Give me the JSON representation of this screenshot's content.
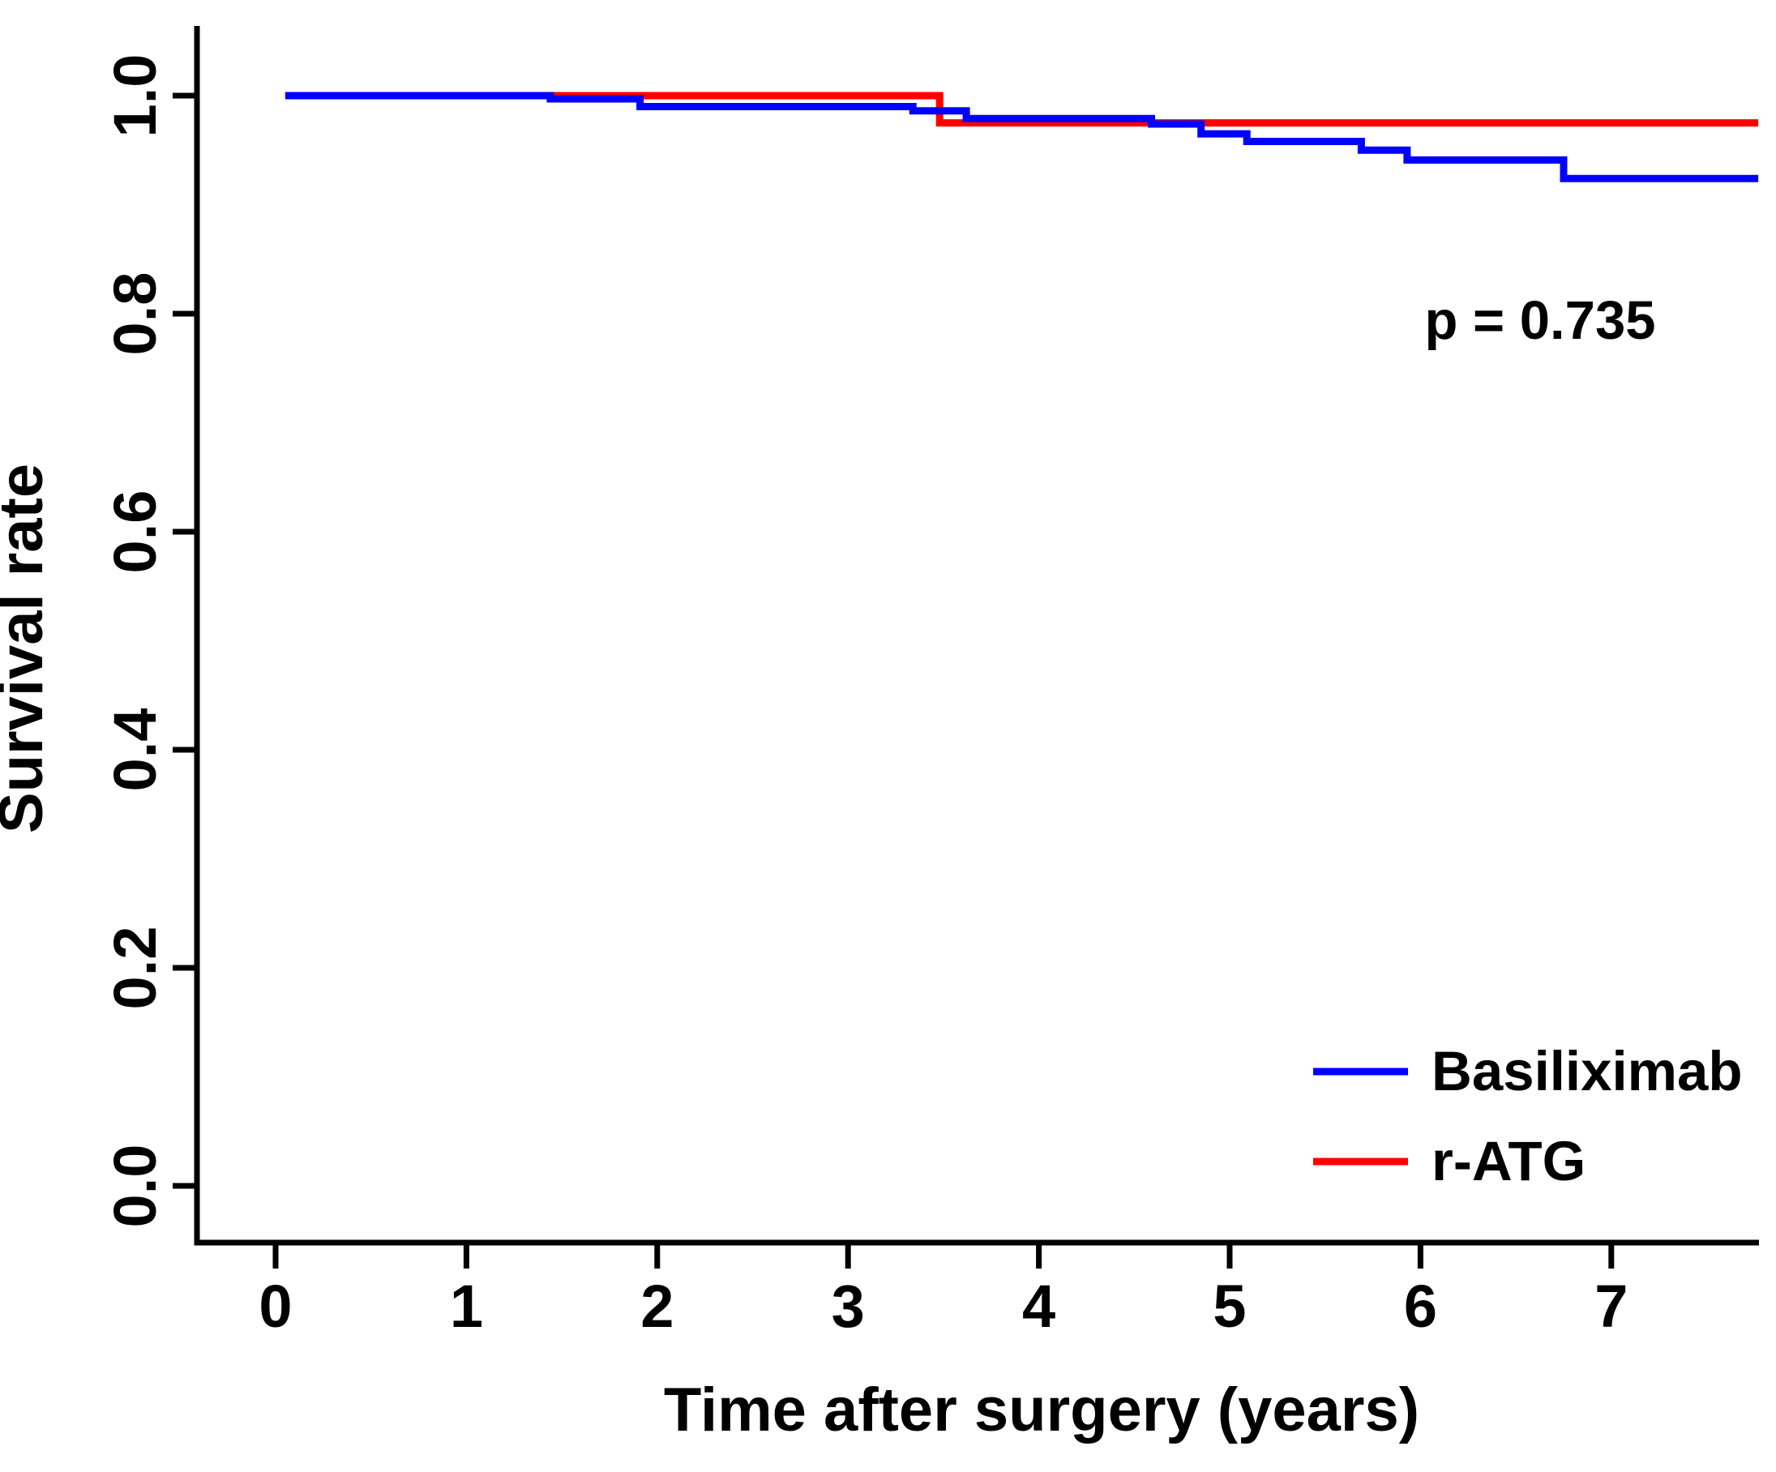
{
  "figure": {
    "background": "#ffffff",
    "axis_color": "#000000"
  },
  "chart_data": {
    "type": "line",
    "subtype": "kaplan-meier-step",
    "title": "",
    "xlabel": "Time after surgery (years)",
    "ylabel": "Survival rate",
    "xlim": [
      -0.41,
      7.78
    ],
    "ylim": [
      0.0,
      1.06
    ],
    "grid": false,
    "x_ticks": {
      "values": [
        0,
        1,
        2,
        3,
        4,
        5,
        6,
        7
      ],
      "labels": [
        "0",
        "1",
        "2",
        "3",
        "4",
        "5",
        "6",
        "7"
      ]
    },
    "y_ticks": {
      "values": [
        0.0,
        0.2,
        0.4,
        0.6,
        0.8,
        1.0
      ],
      "labels": [
        "0.0",
        "0.2",
        "0.4",
        "0.6",
        "0.8",
        "1.0"
      ]
    },
    "annotation": {
      "text": "p = 0.735",
      "x": 6.63,
      "y": 0.795
    },
    "series": [
      {
        "name": "r-ATG",
        "color": "#ff0000",
        "step": "post",
        "x": [
          1.44,
          3.48,
          7.77
        ],
        "y": [
          1.0,
          0.975,
          0.975
        ]
      },
      {
        "name": "Basiliximab",
        "color": "#0000ff",
        "step": "post",
        "x": [
          0.05,
          1.44,
          1.91,
          3.34,
          3.62,
          4.59,
          4.85,
          5.09,
          5.69,
          5.93,
          6.75,
          7.77
        ],
        "y": [
          1.0,
          0.997,
          0.99,
          0.986,
          0.979,
          0.974,
          0.965,
          0.958,
          0.95,
          0.941,
          0.924,
          0.924
        ]
      }
    ],
    "legend": {
      "position": "bottom-right",
      "entries": [
        {
          "label": "Basiliximab",
          "color": "#0000ff"
        },
        {
          "label": "r-ATG",
          "color": "#ff0000"
        }
      ]
    }
  }
}
